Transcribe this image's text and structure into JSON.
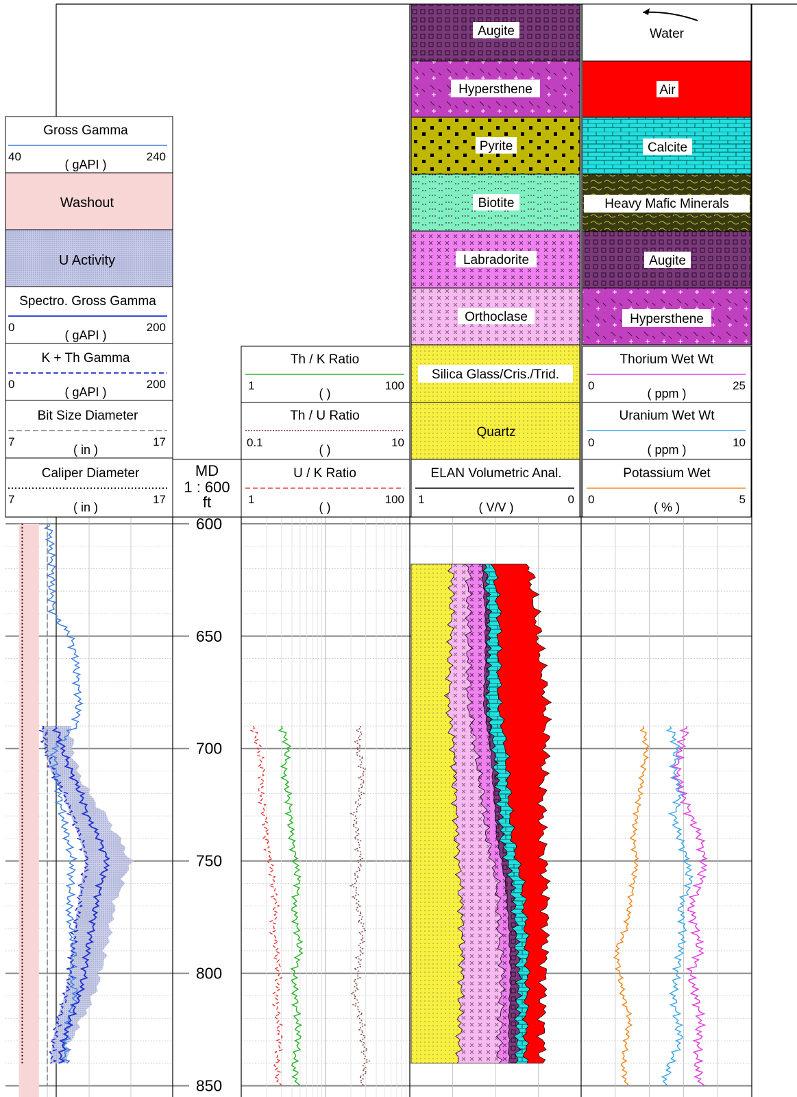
{
  "colors": {
    "gross_gamma": "#3f7fdf",
    "spectro_gamma": "#1f2fcf",
    "k_th_gamma": "#1f2fcf",
    "bit_size": "#666666",
    "caliper": "#000000",
    "th_k": "#2cb52c",
    "th_u": "#8a4a4a",
    "u_k": "#e84040",
    "thorium": "#e040e0",
    "uranium": "#40a8e8",
    "potassium": "#f08a20",
    "washout": "#f8d6d6",
    "u_activity": "#c8cce8",
    "augite": "#7a3a7a",
    "hypersthene": "#c040c0",
    "pyrite": "#c0b800",
    "biotite": "#80f0c0",
    "labradorite": "#f080f0",
    "orthoclase": "#f8b8f0",
    "silica_glass": "#f8f040",
    "quartz": "#f8f040",
    "water": "#ffffff",
    "air": "#ff0000",
    "calcite": "#20e0e0",
    "heavy_mafic": "#3a3a10"
  },
  "track1": {
    "curves": [
      {
        "key": "gross_gamma",
        "name": "Gross Gamma",
        "unit": "( gAPI )",
        "left": "40",
        "right": "240",
        "style": "solid"
      },
      {
        "key": "washout",
        "name": "Washout",
        "fill": true
      },
      {
        "key": "u_activity",
        "name": "U Activity",
        "fill": true
      },
      {
        "key": "spectro_gamma",
        "name": "Spectro. Gross Gamma",
        "unit": "( gAPI )",
        "left": "0",
        "right": "200",
        "style": "solid"
      },
      {
        "key": "k_th_gamma",
        "name": "K + Th Gamma",
        "unit": "( gAPI )",
        "left": "0",
        "right": "200",
        "style": "dashed"
      },
      {
        "key": "bit_size",
        "name": "Bit Size Diameter",
        "unit": "( in )",
        "left": "7",
        "right": "17",
        "style": "dashed"
      },
      {
        "key": "caliper",
        "name": "Caliper Diameter",
        "unit": "( in )",
        "left": "7",
        "right": "17",
        "style": "dotted"
      }
    ]
  },
  "depth_track": {
    "label": "MD",
    "scale": "1 : 600",
    "unit": "ft",
    "ticks": [
      "600",
      "650",
      "700",
      "750",
      "800",
      "850"
    ]
  },
  "track3": {
    "curves": [
      {
        "key": "th_k",
        "name": "Th / K Ratio",
        "unit": "(  )",
        "left": "1",
        "right": "100",
        "style": "solid"
      },
      {
        "key": "th_u",
        "name": "Th / U Ratio",
        "unit": "(  )",
        "left": "0.1",
        "right": "10",
        "style": "dotted"
      },
      {
        "key": "u_k",
        "name": "U / K Ratio",
        "unit": "(  )",
        "left": "1",
        "right": "100",
        "style": "dashed"
      }
    ]
  },
  "track4": {
    "minerals": [
      {
        "key": "augite",
        "name": "Augite"
      },
      {
        "key": "hypersthene",
        "name": "Hypersthene"
      },
      {
        "key": "pyrite",
        "name": "Pyrite"
      },
      {
        "key": "biotite",
        "name": "Biotite"
      },
      {
        "key": "labradorite",
        "name": "Labradorite"
      },
      {
        "key": "orthoclase",
        "name": "Orthoclase"
      },
      {
        "key": "silica_glass",
        "name": "Silica Glass/Cris./Trid."
      },
      {
        "key": "quartz",
        "name": "Quartz"
      }
    ],
    "curve": {
      "name": "ELAN Volumetric Anal.",
      "unit": "( V/V )",
      "left": "1",
      "right": "0"
    }
  },
  "track5": {
    "minerals": [
      {
        "key": "water",
        "name": "Water"
      },
      {
        "key": "air",
        "name": "Air"
      },
      {
        "key": "calcite",
        "name": "Calcite"
      },
      {
        "key": "heavy_mafic",
        "name": "Heavy Mafic Minerals"
      },
      {
        "key": "augite",
        "name": "Augite"
      },
      {
        "key": "hypersthene",
        "name": "Hypersthene"
      }
    ],
    "curves": [
      {
        "key": "thorium",
        "name": "Thorium Wet Wt",
        "unit": "( ppm )",
        "left": "0",
        "right": "25",
        "style": "solid"
      },
      {
        "key": "uranium",
        "name": "Uranium Wet Wt",
        "unit": "( ppm )",
        "left": "0",
        "right": "10",
        "style": "solid"
      },
      {
        "key": "potassium",
        "name": "Potassium Wet",
        "unit": "( % )",
        "left": "0",
        "right": "5",
        "style": "solid"
      }
    ]
  },
  "chart_data": {
    "type": "line",
    "depth_range": [
      597,
      855
    ],
    "data_start": 618,
    "gross_gamma": {
      "depth": [
        600,
        610,
        620,
        630,
        640,
        650,
        660,
        670,
        680,
        690,
        700,
        710,
        720,
        730,
        740,
        750,
        760,
        770,
        780,
        790,
        800,
        810,
        820,
        830,
        840
      ],
      "values": [
        92,
        94,
        96,
        95,
        97,
        118,
        124,
        126,
        128,
        124,
        98,
        100,
        104,
        108,
        114,
        120,
        118,
        116,
        118,
        122,
        118,
        124,
        116,
        112,
        112
      ]
    },
    "spectro_gamma": {
      "depth": [
        690,
        700,
        710,
        720,
        730,
        740,
        750,
        760,
        770,
        780,
        790,
        800,
        810,
        820,
        830,
        840
      ],
      "values": [
        60,
        68,
        78,
        90,
        98,
        112,
        122,
        114,
        108,
        104,
        98,
        95,
        88,
        78,
        70,
        65
      ]
    },
    "k_th_gamma": {
      "depth": [
        690,
        700,
        710,
        720,
        730,
        740,
        750,
        760,
        770,
        780,
        790,
        800,
        810,
        820,
        830,
        840
      ],
      "values": [
        45,
        48,
        56,
        70,
        80,
        90,
        98,
        92,
        88,
        84,
        80,
        78,
        72,
        64,
        58,
        55
      ]
    },
    "caliper": {
      "depth": [
        600,
        620,
        640,
        660,
        680,
        700,
        720,
        740,
        760,
        780,
        800,
        820,
        840
      ],
      "values": [
        8.0,
        8.0,
        8.0,
        8.0,
        8.0,
        8.0,
        8.0,
        8.0,
        8.0,
        8.0,
        8.0,
        8.0,
        8.0
      ]
    },
    "bit_size": {
      "depth": [
        600,
        855
      ],
      "values": [
        9.5,
        9.5
      ]
    },
    "washout": {
      "from": 600,
      "to": 855,
      "left": 7.8,
      "right": 9.0
    },
    "u_activity": {
      "depth": [
        690,
        700,
        710,
        720,
        730,
        740,
        750,
        760,
        770,
        780,
        790,
        800,
        810,
        820,
        830,
        840
      ],
      "values": [
        118,
        120,
        126,
        140,
        160,
        176,
        190,
        180,
        170,
        166,
        160,
        154,
        146,
        132,
        118,
        112
      ]
    },
    "th_k": {
      "depth": [
        690,
        700,
        710,
        720,
        730,
        740,
        750,
        760,
        770,
        780,
        790,
        800,
        810,
        820,
        830,
        840,
        850
      ],
      "values": [
        3.0,
        3.6,
        3.2,
        3.6,
        3.8,
        4.0,
        4.4,
        4.8,
        4.2,
        4.6,
        5.0,
        4.2,
        4.4,
        4.6,
        4.8,
        4.2,
        4.6
      ]
    },
    "th_u": {
      "depth": [
        690,
        700,
        710,
        720,
        730,
        740,
        750,
        760,
        770,
        780,
        790,
        800,
        810,
        820,
        830,
        840,
        850
      ],
      "values": [
        2.6,
        2.4,
        2.8,
        2.6,
        2.2,
        2.4,
        2.6,
        2.2,
        2.4,
        2.8,
        2.6,
        2.4,
        2.2,
        2.6,
        2.8,
        3.0,
        2.6
      ]
    },
    "u_k": {
      "depth": [
        690,
        700,
        710,
        720,
        730,
        740,
        750,
        760,
        770,
        780,
        790,
        800,
        810,
        820,
        830,
        840,
        850
      ],
      "values": [
        1.4,
        1.6,
        1.8,
        1.7,
        1.9,
        2.0,
        2.2,
        2.4,
        2.6,
        2.4,
        2.6,
        2.8,
        2.6,
        2.7,
        2.9,
        2.6,
        2.8
      ]
    },
    "thorium": {
      "depth": [
        690,
        700,
        710,
        720,
        730,
        740,
        750,
        760,
        770,
        780,
        790,
        800,
        810,
        820,
        830,
        840,
        850
      ],
      "values": [
        15.5,
        14.5,
        14.0,
        14.8,
        16.0,
        17.5,
        18.0,
        17.5,
        16.0,
        16.8,
        17.5,
        16.0,
        16.8,
        17.5,
        17.2,
        17.0,
        17.5
      ]
    },
    "uranium": {
      "depth": [
        690,
        700,
        710,
        720,
        730,
        740,
        750,
        760,
        770,
        780,
        790,
        800,
        810,
        820,
        830,
        840,
        850
      ],
      "values": [
        5.2,
        5.6,
        5.4,
        5.8,
        5.4,
        5.8,
        6.2,
        6.4,
        5.8,
        6.0,
        5.8,
        5.6,
        5.4,
        5.6,
        5.8,
        5.2,
        4.8
      ]
    },
    "potassium": {
      "depth": [
        690,
        700,
        710,
        720,
        730,
        740,
        750,
        760,
        770,
        780,
        790,
        800,
        810,
        820,
        830,
        840,
        850
      ],
      "values": [
        1.8,
        1.9,
        1.8,
        1.7,
        1.6,
        1.5,
        1.6,
        1.5,
        1.4,
        1.3,
        1.0,
        1.1,
        1.2,
        1.4,
        1.3,
        1.2,
        1.3
      ]
    },
    "elan": {
      "depth": [
        618,
        640,
        660,
        680,
        700,
        720,
        740,
        760,
        780,
        800,
        820,
        840
      ],
      "quartz": [
        0.24,
        0.24,
        0.23,
        0.22,
        0.25,
        0.26,
        0.27,
        0.29,
        0.3,
        0.3,
        0.29,
        0.28
      ],
      "orthoclase": [
        0.1,
        0.1,
        0.11,
        0.12,
        0.13,
        0.16,
        0.18,
        0.22,
        0.22,
        0.24,
        0.24,
        0.24
      ],
      "labradorite": [
        0.08,
        0.1,
        0.1,
        0.09,
        0.09,
        0.07,
        0.06,
        0.05,
        0.06,
        0.05,
        0.05,
        0.06
      ],
      "augite": [
        0.02,
        0.02,
        0.02,
        0.02,
        0.02,
        0.03,
        0.03,
        0.04,
        0.04,
        0.05,
        0.05,
        0.05
      ],
      "calcite": [
        0.05,
        0.06,
        0.06,
        0.07,
        0.07,
        0.06,
        0.06,
        0.06,
        0.06,
        0.05,
        0.05,
        0.05
      ],
      "air": [
        0.21,
        0.22,
        0.25,
        0.28,
        0.24,
        0.2,
        0.18,
        0.14,
        0.12,
        0.1,
        0.1,
        0.1
      ]
    }
  }
}
